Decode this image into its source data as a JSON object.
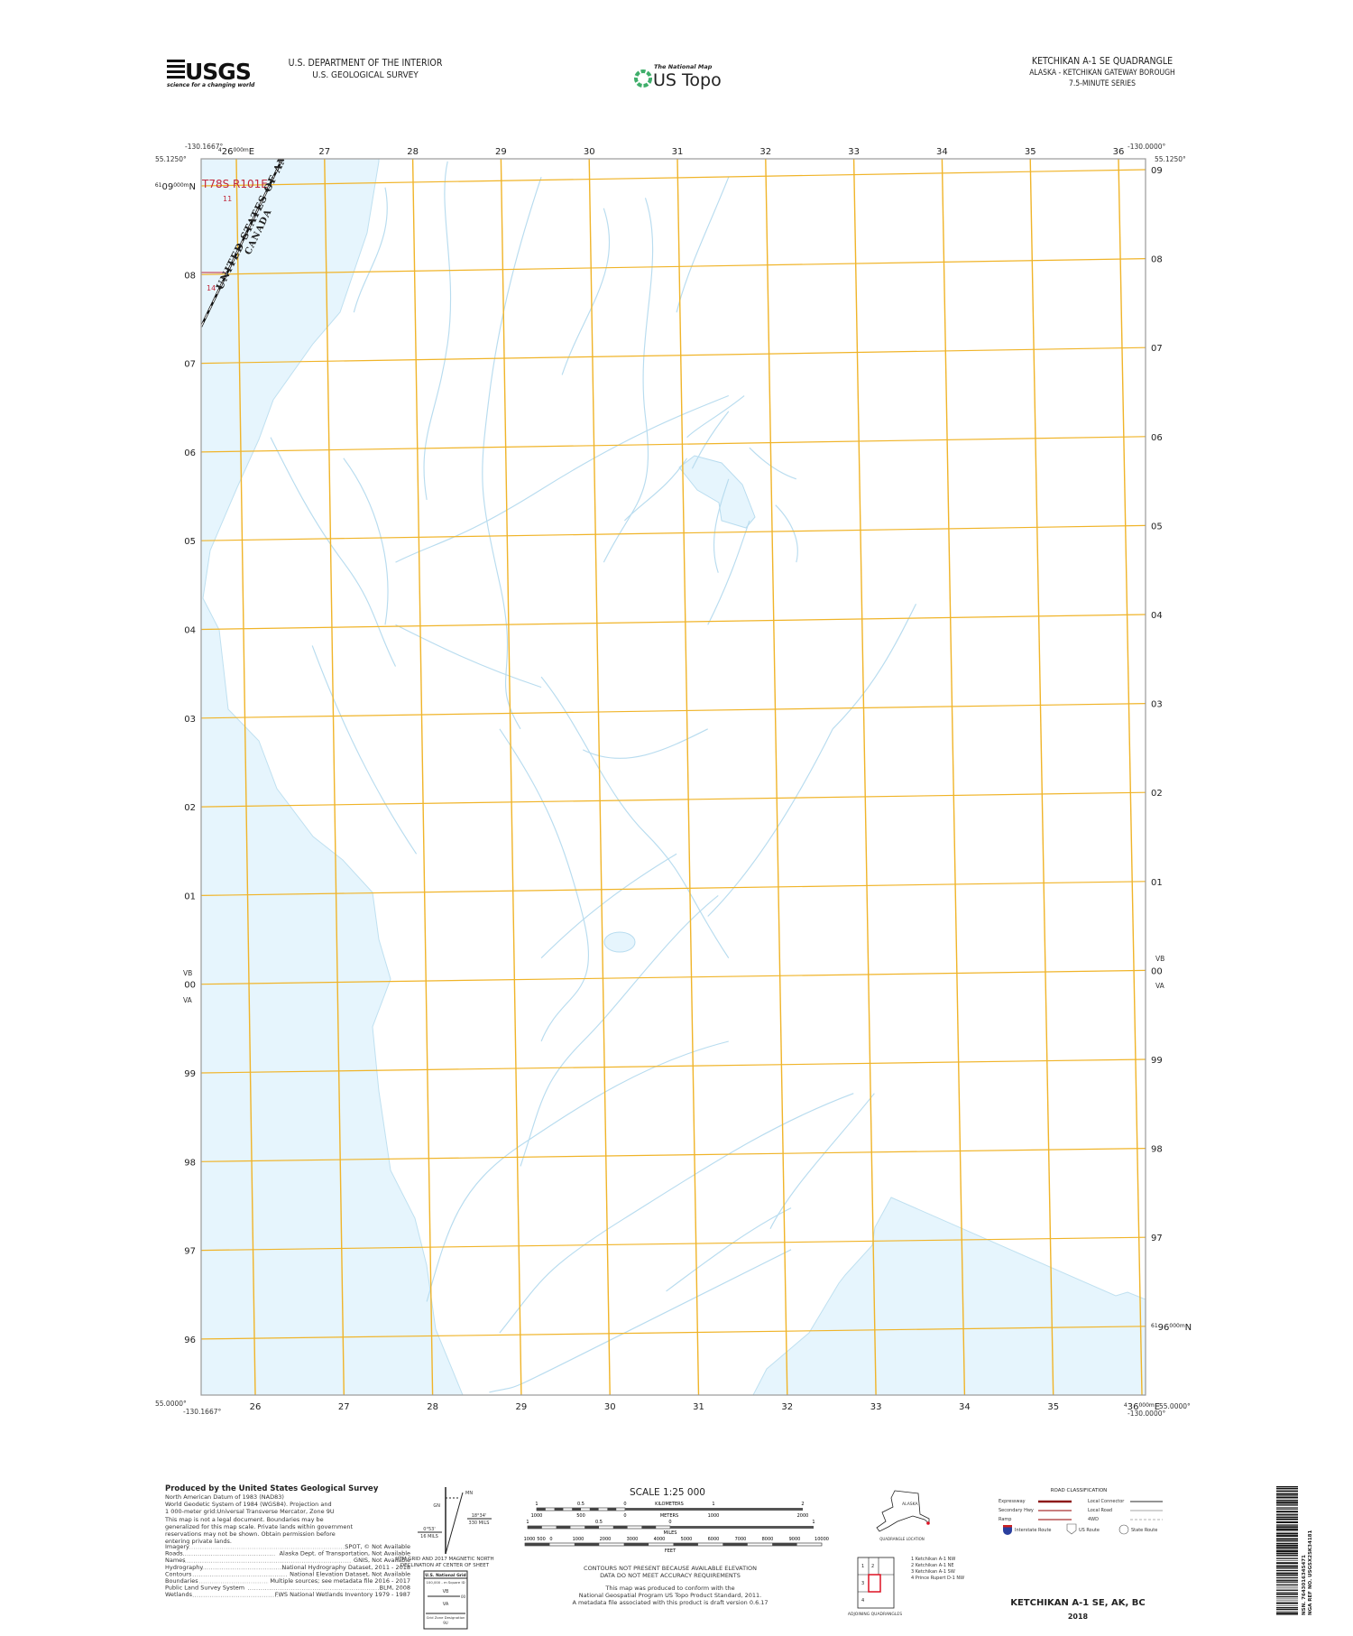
{
  "header": {
    "agency_logo_text": "USGS",
    "agency_tagline": "science for a changing world",
    "department": "U.S. DEPARTMENT OF THE INTERIOR",
    "survey": "U.S. GEOLOGICAL SURVEY",
    "product_small": "The National Map",
    "product_name": "US Topo",
    "quad_title": "KETCHIKAN A-1 SE QUADRANGLE",
    "quad_region": "ALASKA - KETCHIKAN GATEWAY BOROUGH",
    "quad_series": "7.5-MINUTE SERIES"
  },
  "map": {
    "corners": {
      "top_left_lon": "-130.1667°",
      "top_left_lat": "55.1250°",
      "top_right_lon": "-130.0000°",
      "top_right_lat": "55.1250°",
      "bottom_left_lat": "55.0000°",
      "bottom_left_lon": "-130.1667°",
      "bottom_right_lon": "-130.0000°",
      "bottom_right_lat": "55.0000°"
    },
    "eastings": [
      "26",
      "27",
      "28",
      "29",
      "30",
      "31",
      "32",
      "33",
      "34",
      "35",
      "36"
    ],
    "northings": [
      "09",
      "08",
      "07",
      "06",
      "05",
      "04",
      "03",
      "02",
      "01",
      "00",
      "99",
      "98",
      "97",
      "96"
    ],
    "easting_full_prefix": "4",
    "easting_full_suffix": "000mE",
    "northing_full_prefix": "61",
    "northing_full_suffix": "000mN",
    "grid_zone_above": "VB",
    "grid_zone_below": "VA",
    "township_range": "T78S R101E",
    "section_a": "11",
    "section_b": "14",
    "boundary_us": "UNITED STATES OF AMERICA",
    "boundary_ca": "CANADA",
    "colors": {
      "water": "#e6f5fd",
      "grid": "#f0b429",
      "stream": "#b8dcef",
      "plss": "#c0283c"
    }
  },
  "footer": {
    "producer_heading": "Produced by the United States Geological Survey",
    "datum_lines": [
      "North American Datum of 1983 (NAD83)",
      "World Geodetic System of 1984 (WGS84).  Projection and",
      "1 000-meter grid:Universal Transverse Mercator, Zone 9U"
    ],
    "legal_lines": [
      "This map is not a legal document. Boundaries may be",
      "generalized for this map scale. Private lands within government",
      "reservations may not be shown. Obtain permission before",
      "entering private lands."
    ],
    "sources": [
      {
        "name": "Imagery",
        "value": "SPOT, © Not Available"
      },
      {
        "name": "Roads",
        "value": "Alaska Dept. of Transportation, Not Available"
      },
      {
        "name": "Names",
        "value": "GNIS, Not Available"
      },
      {
        "name": "Hydrography",
        "value": "National Hydrography Dataset, 2011 - 2018"
      },
      {
        "name": "Contours",
        "value": "National Elevation Dataset, Not Available"
      },
      {
        "name": "Boundaries",
        "value": "Multiple sources; see metadata file 2016 - 2017"
      },
      {
        "name": "Public Land Survey System",
        "value": "BLM, 2008"
      },
      {
        "name": "Wetlands",
        "value": "FWS National Wetlands Inventory 1979 - 1987"
      }
    ],
    "declination": {
      "grid_label": "GN",
      "mag_label": "MN",
      "grid_angle": "0°53'",
      "grid_mils": "16 MILS",
      "mag_angle": "18°34'",
      "mag_mils": "330 MILS",
      "caption_1": "UTM GRID AND 2017 MAGNETIC NORTH",
      "caption_2": "DECLINATION AT CENTER OF SHEET"
    },
    "usng": {
      "title": "U.S. National Grid",
      "subtitle": "100,000 - m Square ID",
      "upper": "VB",
      "line_label": "00",
      "lower": "VA",
      "zone_caption": "Grid Zone Designation",
      "zone": "9U"
    },
    "scale": {
      "title": "SCALE 1:25 000",
      "km_ticks": [
        "1",
        "0.5",
        "0",
        "1",
        "2"
      ],
      "km_label": "KILOMETERS",
      "m_ticks": [
        "1000",
        "500",
        "0",
        "1000",
        "2000"
      ],
      "m_label": "METERS",
      "mi_ticks": [
        "1",
        "0.5",
        "0",
        "1"
      ],
      "mi_label": "MILES",
      "ft_ticks": [
        "1000",
        "500",
        "0",
        "1000",
        "2000",
        "3000",
        "4000",
        "5000",
        "6000",
        "7000",
        "8000",
        "9000",
        "10000"
      ],
      "ft_label": "FEET"
    },
    "contour_note_1": "CONTOURS NOT PRESENT BECAUSE AVAILABLE ELEVATION",
    "contour_note_2": "DATA DO NOT MEET ACCURACY REQUIREMENTS",
    "standard_lines": [
      "This map was produced to conform with the",
      "National Geospatial Program US Topo Product Standard, 2011.",
      "A metadata file associated with this product is draft version 0.6.17"
    ],
    "location": {
      "state_label": "ALASKA",
      "caption": "QUADRANGLE LOCATION"
    },
    "adjoining": {
      "caption": "ADJOINING QUADRANGLES",
      "cells": [
        "1",
        "2",
        "3",
        "4"
      ],
      "list": [
        "1 Ketchikan A-1 NW",
        "2 Ketchikan A-1 NE",
        "3 Ketchikan A-1 SW",
        "4 Prince Rupert D-1 NW"
      ]
    },
    "roads": {
      "title": "ROAD CLASSIFICATION",
      "left": [
        "Expressway",
        "Secondary Hwy",
        "Ramp"
      ],
      "right": [
        "Local Connector",
        "Local Road",
        "4WD"
      ],
      "shields": [
        "Interstate Route",
        "US Route",
        "State Route"
      ]
    },
    "sheet_title": "KETCHIKAN A-1 SE,  AK, BC",
    "sheet_year": "2018",
    "barcode_text_1": "NSN. 7643016345471",
    "barcode_text_2": "NGA REF NO. USGSX25K34181"
  }
}
